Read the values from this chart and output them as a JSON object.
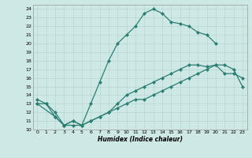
{
  "xlabel": "Humidex (Indice chaleur)",
  "ylabel": "",
  "bg_color": "#cde8e5",
  "line_color": "#2e7d72",
  "grid_color": "#b0d4d0",
  "xlim": [
    -0.5,
    23.5
  ],
  "ylim": [
    10,
    24.5
  ],
  "xticks": [
    0,
    1,
    2,
    3,
    4,
    5,
    6,
    7,
    8,
    9,
    10,
    11,
    12,
    13,
    14,
    15,
    16,
    17,
    18,
    19,
    20,
    21,
    22,
    23
  ],
  "yticks": [
    10,
    11,
    12,
    13,
    14,
    15,
    16,
    17,
    18,
    19,
    20,
    21,
    22,
    23,
    24
  ],
  "line1_x": [
    0,
    1,
    2,
    3,
    4,
    5,
    6,
    7,
    8,
    9,
    10,
    11,
    12,
    13,
    14,
    15,
    16,
    17,
    18,
    19,
    20
  ],
  "line1_y": [
    13,
    13,
    11.5,
    10.5,
    10.5,
    10.5,
    13,
    15.5,
    18,
    20,
    21,
    22,
    23.5,
    24,
    23.5,
    22.5,
    22.3,
    22,
    21.3,
    21,
    20
  ],
  "line2_x": [
    0,
    1,
    2,
    3,
    4,
    5,
    6,
    7,
    8,
    9,
    10,
    11,
    12,
    13,
    14,
    15,
    16,
    17,
    18,
    19,
    20,
    21,
    22,
    23
  ],
  "line2_y": [
    13.5,
    13,
    12,
    10.5,
    11,
    10.5,
    11,
    11.5,
    12,
    13,
    14,
    14.5,
    15,
    15.5,
    16,
    16.5,
    17,
    17.5,
    17.5,
    17.3,
    17.5,
    16.5,
    16.5,
    16
  ],
  "line3_x": [
    0,
    2,
    3,
    4,
    5,
    6,
    7,
    8,
    9,
    10,
    11,
    12,
    13,
    14,
    15,
    16,
    17,
    18,
    19,
    20,
    21,
    22,
    23
  ],
  "line3_y": [
    13,
    11.5,
    10.5,
    11,
    10.5,
    11,
    11.5,
    12,
    12.5,
    13,
    13.5,
    13.5,
    14,
    14.5,
    15,
    15.5,
    16,
    16.5,
    17,
    17.5,
    17.5,
    17,
    15
  ]
}
